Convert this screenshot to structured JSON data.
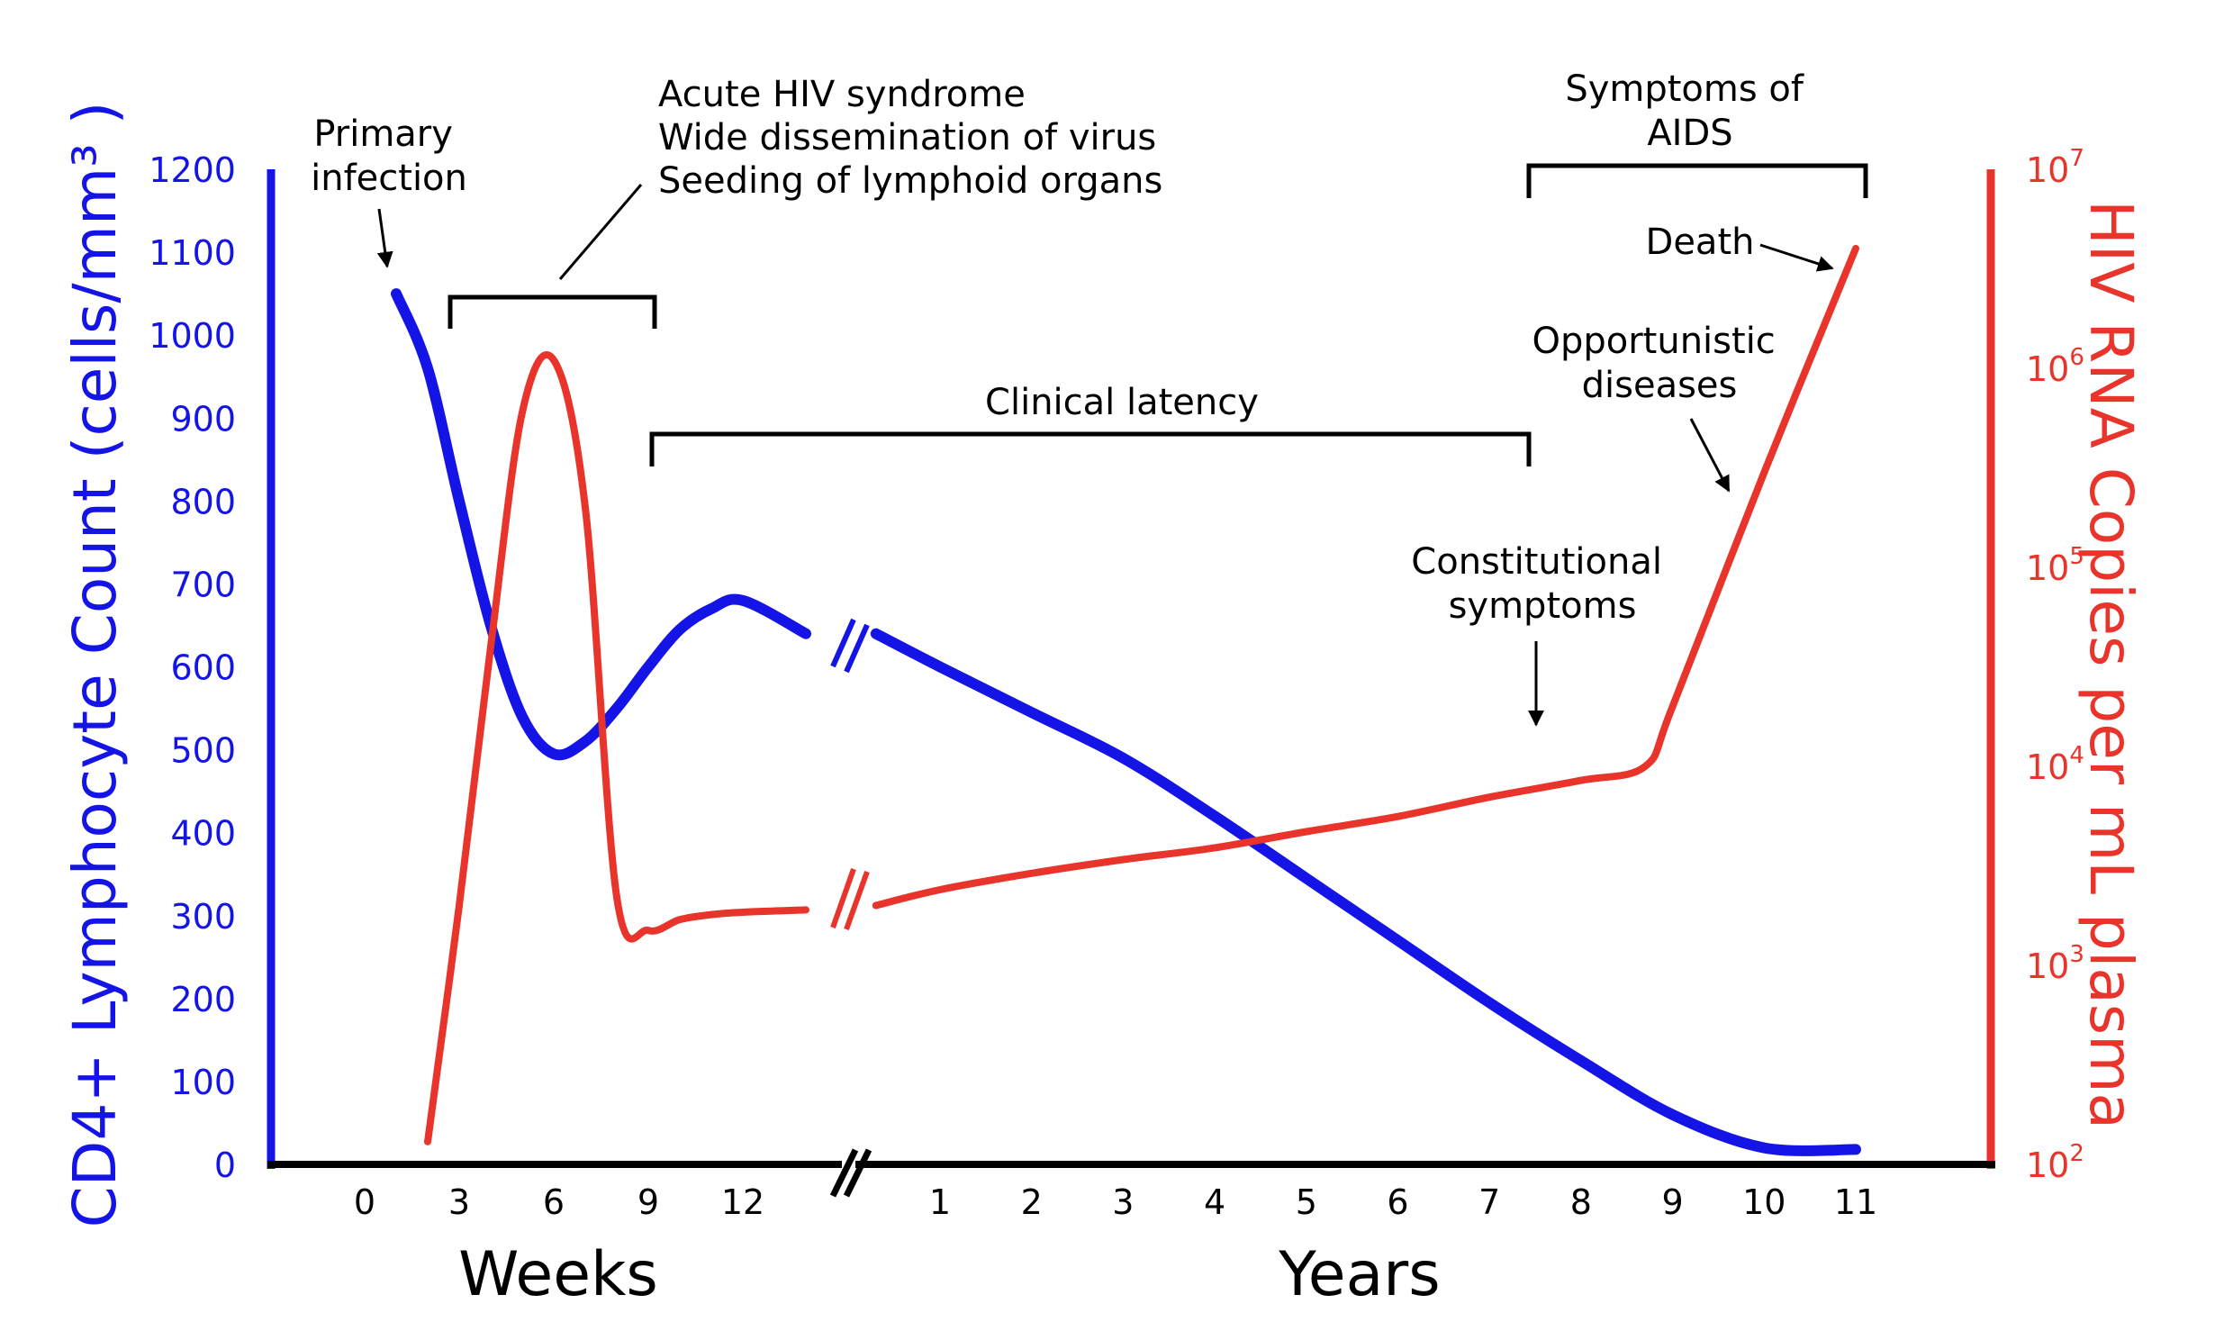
{
  "chart_data": {
    "type": "line",
    "left_axis": {
      "label": "CD4+ Lymphocyte Count (cells/mm³ )",
      "ticks": [
        "0",
        "100",
        "200",
        "300",
        "400",
        "500",
        "600",
        "700",
        "800",
        "900",
        "1000",
        "1100",
        "1200"
      ],
      "range": [
        0,
        1200
      ],
      "color": "#1414e6"
    },
    "right_axis": {
      "label": "HIV RNA Copies per mL plasma",
      "ticks": [
        {
          "base": "10",
          "exp": "2"
        },
        {
          "base": "10",
          "exp": "3"
        },
        {
          "base": "10",
          "exp": "4"
        },
        {
          "base": "10",
          "exp": "5"
        },
        {
          "base": "10",
          "exp": "6"
        },
        {
          "base": "10",
          "exp": "7"
        }
      ],
      "scale": "log",
      "range": [
        100,
        10000000
      ],
      "color": "#e8342a"
    },
    "x_axis": {
      "weeks_label": "Weeks",
      "years_label": "Years",
      "weeks_ticks": [
        "0",
        "3",
        "6",
        "9",
        "12"
      ],
      "years_ticks": [
        "1",
        "2",
        "3",
        "4",
        "5",
        "6",
        "7",
        "8",
        "9",
        "10",
        "11"
      ],
      "break": true
    },
    "series": [
      {
        "color": "#1414e6",
        "weeks": {
          "x": [
            1,
            2,
            3,
            4,
            5,
            6,
            7,
            8,
            9,
            10,
            11,
            12,
            14
          ],
          "y": [
            1050,
            960,
            800,
            650,
            540,
            495,
            510,
            550,
            600,
            645,
            670,
            680,
            640
          ]
        },
        "years": {
          "x": [
            0.3,
            1,
            2,
            3,
            4,
            5,
            6,
            7,
            8,
            9,
            10,
            11
          ],
          "y": [
            640,
            600,
            545,
            490,
            420,
            345,
            270,
            195,
            125,
            60,
            20,
            18
          ]
        }
      },
      {
        "color": "#e8342a",
        "weeks": {
          "x": [
            2,
            3,
            4,
            5,
            6,
            7,
            8,
            9,
            10,
            11,
            12,
            14
          ],
          "y": [
            130,
            2000,
            40000,
            600000,
            1100000,
            200000,
            2200,
            1500,
            1700,
            1800,
            1850,
            1900
          ]
        },
        "years": {
          "x": [
            0.3,
            1,
            2,
            3,
            4,
            5,
            6,
            7,
            8,
            8.7,
            9,
            10,
            11
          ],
          "y": [
            2000,
            2400,
            2900,
            3400,
            3900,
            4700,
            5600,
            7000,
            8500,
            10000,
            20000,
            300000,
            4000000
          ]
        }
      }
    ],
    "annotations": {
      "primary_infection": [
        "Primary",
        "infection"
      ],
      "acute": [
        "Acute HIV syndrome",
        "Wide dissemination of virus",
        "Seeding of lymphoid organs"
      ],
      "clinical_latency": "Clinical latency",
      "symptoms_aids": [
        "Symptoms of",
        "AIDS"
      ],
      "death": "Death",
      "opportunistic": [
        "Opportunistic",
        "diseases"
      ],
      "constitutional": [
        "Constitutional",
        "symptoms"
      ]
    }
  }
}
